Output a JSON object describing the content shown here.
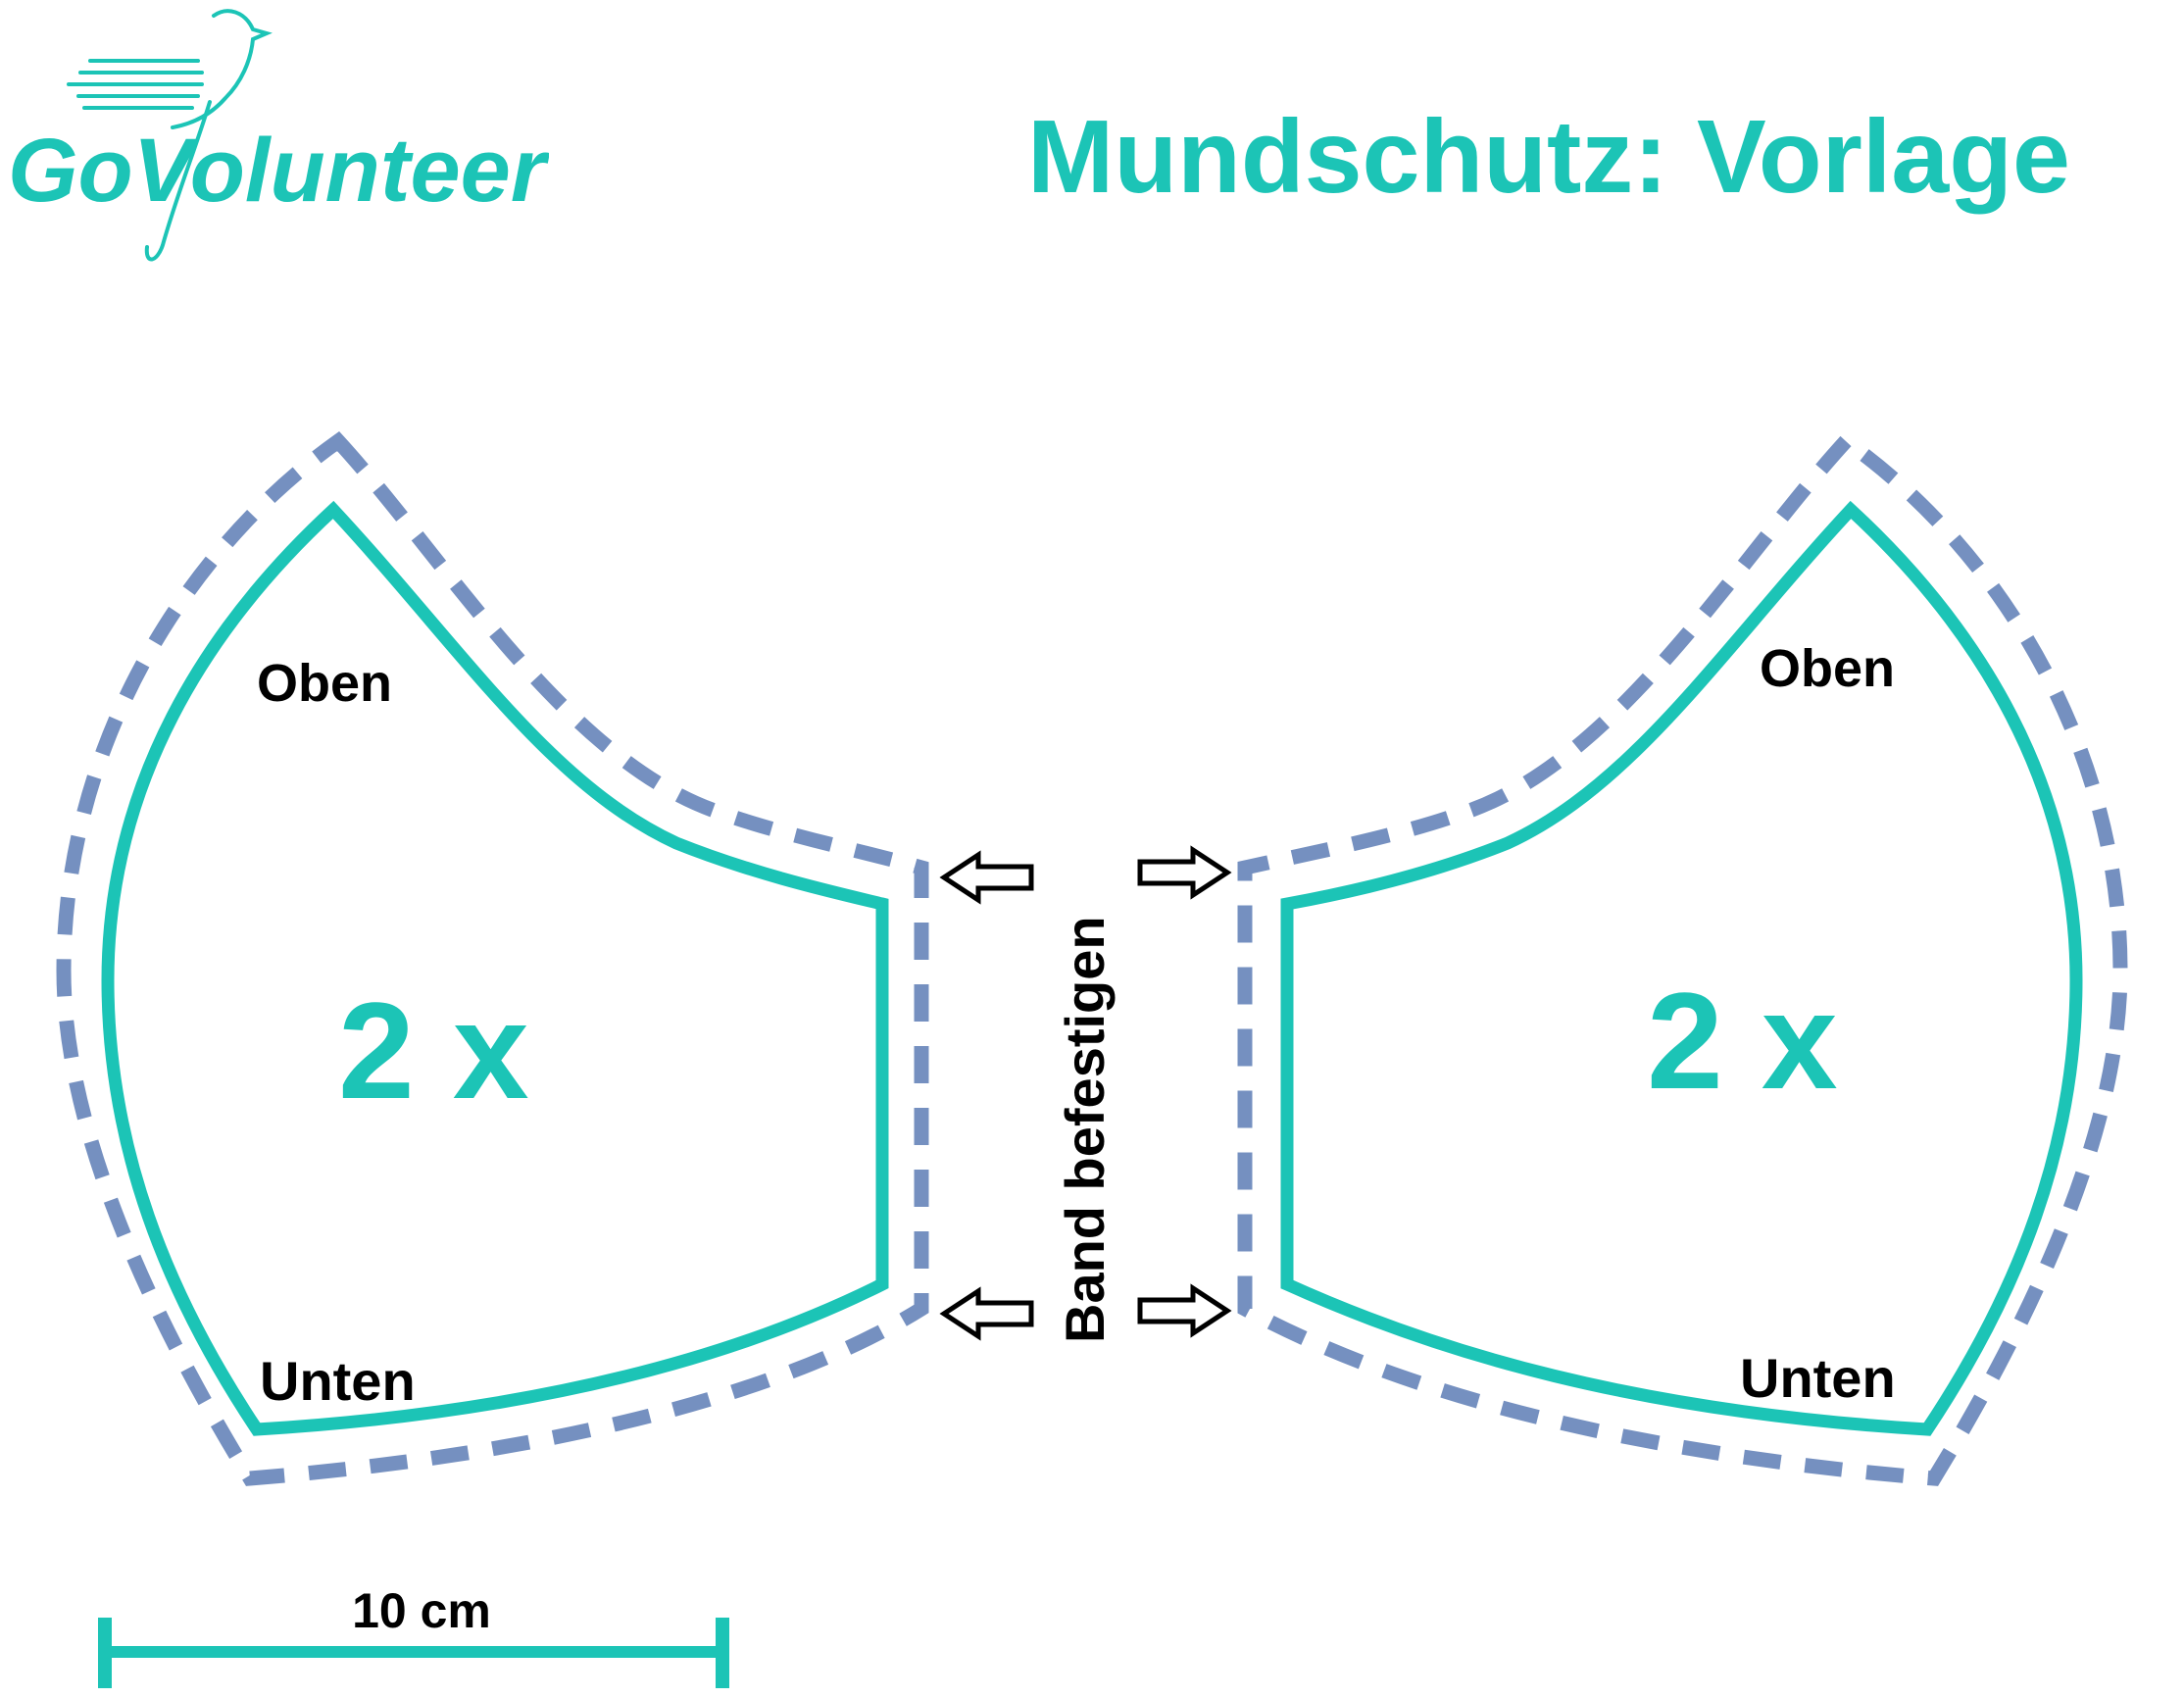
{
  "logo": {
    "text": "GoVolunteer"
  },
  "title": "Mundschutz: Vorlage",
  "colors": {
    "accent": "#1cc4b6",
    "seam": "#7590c0",
    "text": "#000000"
  },
  "left_piece": {
    "top_label": "Oben",
    "bottom_label": "Unten",
    "count": "2 x"
  },
  "right_piece": {
    "top_label": "Oben",
    "bottom_label": "Unten",
    "count": "2 x"
  },
  "center_label": "Band befestigen",
  "scale": {
    "label": "10 cm"
  }
}
